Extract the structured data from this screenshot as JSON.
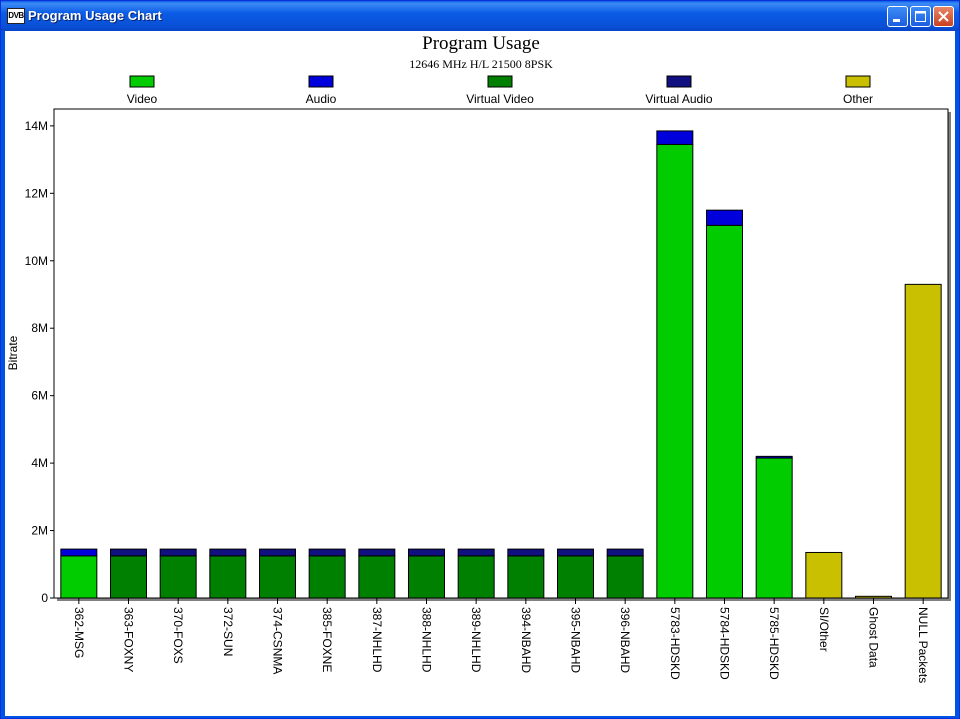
{
  "window": {
    "title": "Program Usage Chart",
    "app_icon_label": "DVB"
  },
  "chart_data": {
    "type": "bar",
    "stacked": true,
    "title": "Program Usage",
    "subtitle": "12646 MHz H/L 21500 8PSK",
    "xlabel": "",
    "ylabel": "Bitrate",
    "ylim": [
      0,
      14500000
    ],
    "y_ticks": [
      0,
      2000000,
      4000000,
      6000000,
      8000000,
      10000000,
      12000000,
      14000000
    ],
    "y_tick_labels": [
      "0",
      "2M",
      "4M",
      "6M",
      "8M",
      "10M",
      "12M",
      "14M"
    ],
    "legend_position": "top",
    "grid": false,
    "categories": [
      "362-MSG",
      "363-FOXNY",
      "370-FOXS",
      "372-SUN",
      "374-CSNMA",
      "385-FOXNE",
      "387-NHLHD",
      "388-NHLHD",
      "389-NHLHD",
      "394-NBAHD",
      "395-NBAHD",
      "396-NBAHD",
      "5783-HDSKD",
      "5784-HDSKD",
      "5785-HDSKD",
      "SI/Other",
      "Ghost Data",
      "NULL Packets"
    ],
    "series": [
      {
        "name": "Video",
        "color": "#00cc00",
        "values": [
          1250000,
          0,
          0,
          0,
          0,
          0,
          0,
          0,
          0,
          0,
          0,
          0,
          13450000,
          11050000,
          4150000,
          0,
          0,
          0
        ]
      },
      {
        "name": "Audio",
        "color": "#0000dd",
        "values": [
          200000,
          0,
          0,
          0,
          0,
          0,
          0,
          0,
          0,
          0,
          0,
          0,
          400000,
          450000,
          50000,
          0,
          0,
          0
        ]
      },
      {
        "name": "Virtual Video",
        "color": "#008000",
        "values": [
          0,
          1250000,
          1250000,
          1250000,
          1250000,
          1250000,
          1250000,
          1250000,
          1250000,
          1250000,
          1250000,
          1250000,
          0,
          0,
          0,
          0,
          0,
          0
        ]
      },
      {
        "name": "Virtual Audio",
        "color": "#101080",
        "values": [
          0,
          200000,
          200000,
          200000,
          200000,
          200000,
          200000,
          200000,
          200000,
          200000,
          200000,
          200000,
          0,
          0,
          0,
          0,
          0,
          0
        ]
      },
      {
        "name": "Other",
        "color": "#c8c000",
        "values": [
          0,
          0,
          0,
          0,
          0,
          0,
          0,
          0,
          0,
          0,
          0,
          0,
          0,
          0,
          0,
          1350000,
          50000,
          9300000
        ]
      }
    ]
  }
}
